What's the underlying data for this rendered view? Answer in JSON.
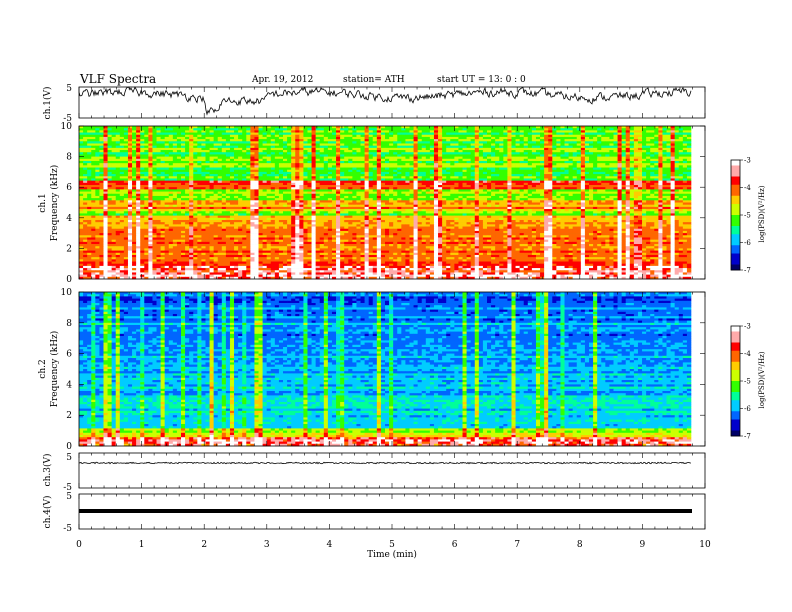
{
  "header": {
    "title": "VLF  Spectra",
    "date": "Apr. 19,  2012",
    "station": "station= ATH",
    "start": "start  UT  =   13: 0  : 0"
  },
  "chart_data": [
    {
      "type": "line",
      "panel": "ch1-waveform",
      "ylabel": "ch.1(V)",
      "ylim": [
        -5,
        5
      ],
      "yticks": [
        "5",
        "-5"
      ],
      "x_range_min": [
        0,
        9.8
      ],
      "description_values": "continuous voltage trace fluctuating mostly between about 1 and 5 V, dip near 2.1 min"
    },
    {
      "type": "heatmap",
      "panel": "ch1-spectrogram",
      "ylabel_lines": [
        "ch.1",
        "Frequency  (kHz)"
      ],
      "ylim": [
        0,
        10
      ],
      "yticks": [
        "0",
        "2",
        "4",
        "6",
        "8",
        "10"
      ],
      "x_range_min": [
        0,
        9.8
      ],
      "colorbar": {
        "label": "log(PSD)(V²/Hz)",
        "range": [
          -7,
          -3
        ],
        "ticks": [
          "-3",
          "-4",
          "-5",
          "-6",
          "-7"
        ]
      },
      "dominant_levels": "high PSD (-3.5 to -4.5) below 4 kHz and near 6 kHz, -5 to -5.5 above 6 kHz"
    },
    {
      "type": "heatmap",
      "panel": "ch2-spectrogram",
      "ylabel_lines": [
        "ch.2",
        "Frequency  (kHz)"
      ],
      "ylim": [
        0,
        10
      ],
      "yticks": [
        "0",
        "2",
        "4",
        "6",
        "8",
        "10"
      ],
      "x_range_min": [
        0,
        9.8
      ],
      "colorbar": {
        "label": "log(PSD)(V²/Hz)",
        "range": [
          -7,
          -3
        ],
        "ticks": [
          "-3",
          "-4",
          "-5",
          "-6",
          "-7"
        ]
      },
      "dominant_levels": "mostly -5.5 to -6.5 across band, higher near 0-1 kHz, vertical broadband impulses"
    },
    {
      "type": "line",
      "panel": "ch3-waveform",
      "ylabel": "ch.3(V)",
      "ylim": [
        -5,
        5
      ],
      "yticks": [
        "5",
        "-5"
      ],
      "values_note": "flat near 0 V"
    },
    {
      "type": "line",
      "panel": "ch4-waveform",
      "ylabel": "ch.4(V)",
      "ylim": [
        -5,
        5
      ],
      "yticks": [
        "5",
        "-5"
      ],
      "values_note": "flat near 0 V, thick noise band"
    }
  ],
  "xaxis": {
    "label": "Time  (min)",
    "range": [
      0,
      10
    ],
    "ticks": [
      "0",
      "1",
      "2",
      "3",
      "4",
      "5",
      "6",
      "7",
      "8",
      "9",
      "10"
    ]
  },
  "colors": {
    "colormap": [
      "#000066",
      "#0000cc",
      "#0066ff",
      "#00ccff",
      "#00ff99",
      "#33ff00",
      "#ccff00",
      "#ffcc00",
      "#ff6600",
      "#ff0000",
      "#ffaaaa",
      "#ffffff"
    ]
  }
}
